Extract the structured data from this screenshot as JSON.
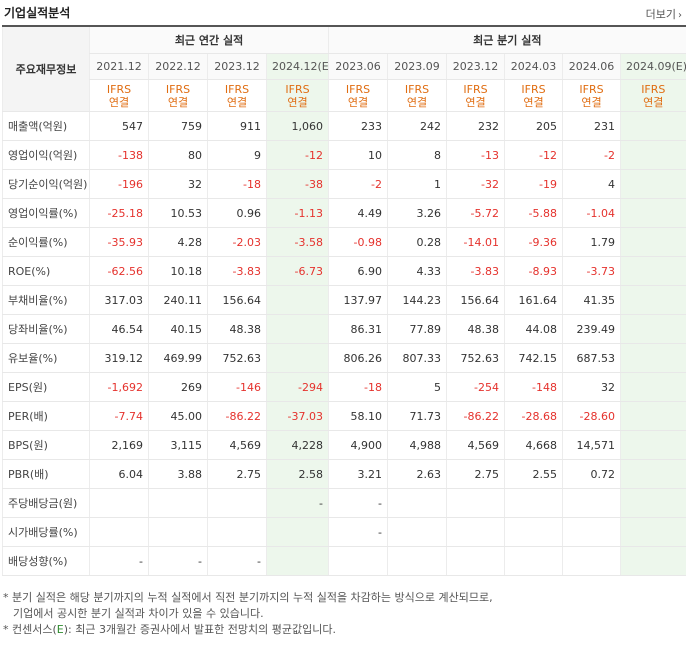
{
  "header": {
    "title": "기업실적분석",
    "more_label": "더보기",
    "more_arrow": "›"
  },
  "table": {
    "label_header": "주요재무정보",
    "annual_header": "최근 연간 실적",
    "quarter_header": "최근 분기 실적",
    "periods": [
      {
        "label": "2021.12",
        "estimate": false
      },
      {
        "label": "2022.12",
        "estimate": false
      },
      {
        "label": "2023.12",
        "estimate": false
      },
      {
        "label": "2024.12(E)",
        "estimate": true
      },
      {
        "label": "2023.06",
        "estimate": false
      },
      {
        "label": "2023.09",
        "estimate": false
      },
      {
        "label": "2023.12",
        "estimate": false
      },
      {
        "label": "2024.03",
        "estimate": false
      },
      {
        "label": "2024.06",
        "estimate": false
      },
      {
        "label": "2024.09(E)",
        "estimate": true
      }
    ],
    "basis_line1": "IFRS",
    "basis_line2": "연결",
    "rows": [
      {
        "label": "매출액(억원)",
        "group": true,
        "values": [
          "547",
          "759",
          "911",
          "1,060",
          "233",
          "242",
          "232",
          "205",
          "231",
          ""
        ]
      },
      {
        "label": "영업이익(억원)",
        "values": [
          "-138",
          "80",
          "9",
          "-12",
          "10",
          "8",
          "-13",
          "-12",
          "-2",
          ""
        ]
      },
      {
        "label": "당기순이익(억원)",
        "values": [
          "-196",
          "32",
          "-18",
          "-38",
          "-2",
          "1",
          "-32",
          "-19",
          "4",
          ""
        ]
      },
      {
        "label": "영업이익률(%)",
        "group": true,
        "values": [
          "-25.18",
          "10.53",
          "0.96",
          "-1.13",
          "4.49",
          "3.26",
          "-5.72",
          "-5.88",
          "-1.04",
          ""
        ]
      },
      {
        "label": "순이익률(%)",
        "values": [
          "-35.93",
          "4.28",
          "-2.03",
          "-3.58",
          "-0.98",
          "0.28",
          "-14.01",
          "-9.36",
          "1.79",
          ""
        ]
      },
      {
        "label": "ROE(%)",
        "values": [
          "-62.56",
          "10.18",
          "-3.83",
          "-6.73",
          "6.90",
          "4.33",
          "-3.83",
          "-8.93",
          "-3.73",
          ""
        ]
      },
      {
        "label": "부채비율(%)",
        "group": true,
        "values": [
          "317.03",
          "240.11",
          "156.64",
          "",
          "137.97",
          "144.23",
          "156.64",
          "161.64",
          "41.35",
          ""
        ]
      },
      {
        "label": "당좌비율(%)",
        "values": [
          "46.54",
          "40.15",
          "48.38",
          "",
          "86.31",
          "77.89",
          "48.38",
          "44.08",
          "239.49",
          ""
        ]
      },
      {
        "label": "유보율(%)",
        "values": [
          "319.12",
          "469.99",
          "752.63",
          "",
          "806.26",
          "807.33",
          "752.63",
          "742.15",
          "687.53",
          ""
        ]
      },
      {
        "label": "EPS(원)",
        "group": true,
        "values": [
          "-1,692",
          "269",
          "-146",
          "-294",
          "-18",
          "5",
          "-254",
          "-148",
          "32",
          ""
        ]
      },
      {
        "label": "PER(배)",
        "values": [
          "-7.74",
          "45.00",
          "-86.22",
          "-37.03",
          "58.10",
          "71.73",
          "-86.22",
          "-28.68",
          "-28.60",
          ""
        ]
      },
      {
        "label": "BPS(원)",
        "values": [
          "2,169",
          "3,115",
          "4,569",
          "4,228",
          "4,900",
          "4,988",
          "4,569",
          "4,668",
          "14,571",
          ""
        ]
      },
      {
        "label": "PBR(배)",
        "values": [
          "6.04",
          "3.88",
          "2.75",
          "2.58",
          "3.21",
          "2.63",
          "2.75",
          "2.55",
          "0.72",
          ""
        ]
      },
      {
        "label": "주당배당금(원)",
        "group": true,
        "values": [
          "",
          "",
          "",
          "-",
          "-",
          "",
          "",
          "",
          "",
          ""
        ]
      },
      {
        "label": "시가배당률(%)",
        "values": [
          "",
          "",
          "",
          "",
          "-",
          "",
          "",
          "",
          "",
          ""
        ]
      },
      {
        "label": "배당성향(%)",
        "values": [
          "-",
          "-",
          "-",
          "",
          "",
          "",
          "",
          "",
          "",
          ""
        ]
      }
    ]
  },
  "notes": {
    "line1": "* 분기 실적은 해당 분기까지의 누적 실적에서 직전 분기까지의 누적 실적을 차감하는 방식으로 계산되므로,",
    "line2": "기업에서 공시한 분기 실적과 차이가 있을 수 있습니다.",
    "line3_pre": "* 컨센서스(",
    "line3_e": "E",
    "line3_post": "): 최근 3개월간 증권사에서 발표한 전망치의 평균값입니다."
  }
}
